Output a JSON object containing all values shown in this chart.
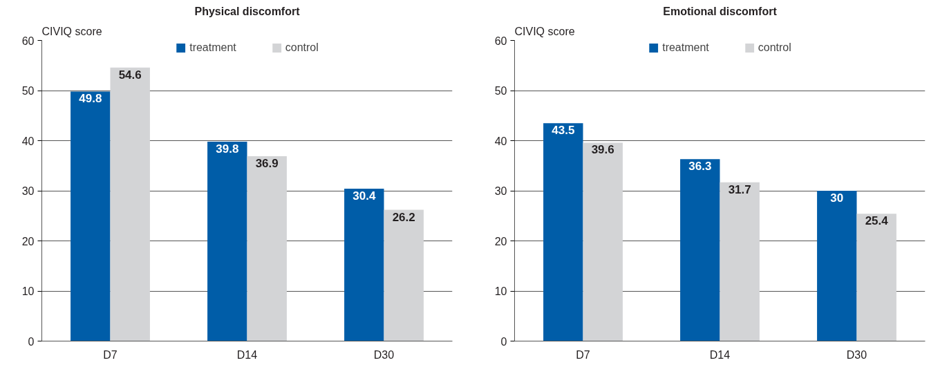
{
  "chart_data": [
    {
      "type": "bar",
      "title": "Physical discomfort",
      "ylabel": "CIVIQ score",
      "categories": [
        "D7",
        "D14",
        "D30"
      ],
      "series": [
        {
          "name": "treatment",
          "color": "#005da8",
          "values": [
            49.8,
            39.8,
            30.4
          ]
        },
        {
          "name": "control",
          "color": "#d3d4d6",
          "values": [
            54.6,
            36.9,
            26.2
          ]
        }
      ],
      "ylim": [
        0,
        60
      ],
      "yticks": [
        0,
        10,
        20,
        30,
        40,
        50,
        60
      ],
      "grid": "y",
      "legend": "top",
      "data_labels": true
    },
    {
      "type": "bar",
      "title": "Emotional discomfort",
      "ylabel": "CIVIQ score",
      "categories": [
        "D7",
        "D14",
        "D30"
      ],
      "series": [
        {
          "name": "treatment",
          "color": "#005da8",
          "values": [
            43.5,
            36.3,
            30
          ]
        },
        {
          "name": "control",
          "color": "#d3d4d6",
          "values": [
            39.6,
            31.7,
            25.4
          ]
        }
      ],
      "ylim": [
        0,
        60
      ],
      "yticks": [
        0,
        10,
        20,
        30,
        40,
        50,
        60
      ],
      "grid": "y",
      "legend": "top",
      "data_labels": true
    }
  ]
}
